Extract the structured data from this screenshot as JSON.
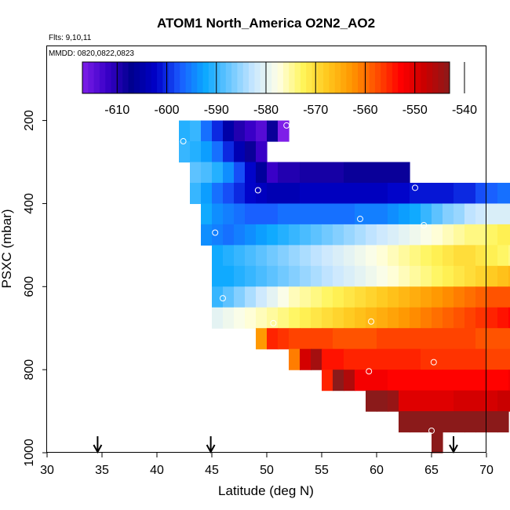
{
  "chart_data": {
    "type": "heatmap",
    "title": "ATOM1 North_America O2N2_AO2",
    "subtitle_flights": "Flts: 9,10,11",
    "subtitle_dates": "MMDD: 0820,0822,0823",
    "xlabel": "Latitude (deg N)",
    "ylabel": "PSXC (mbar)",
    "xlim": [
      30,
      70
    ],
    "ylim": [
      1000,
      0
    ],
    "x_ticks": [
      30,
      35,
      40,
      45,
      50,
      55,
      60,
      65,
      70
    ],
    "y_ticks": [
      200,
      400,
      600,
      800,
      1000
    ],
    "colorbar": {
      "range": [
        -617,
        -543
      ],
      "tick_values": [
        -610,
        -600,
        -590,
        -580,
        -570,
        -560,
        -550,
        -540
      ],
      "tick_labels": [
        "-610",
        "-600",
        "-590",
        "-580",
        "-570",
        "-560",
        "-550",
        "-540"
      ]
    },
    "flight_arrows_lat": [
      34.6,
      44.9,
      67.0
    ],
    "cell_width_deg": 1,
    "cell_height_mbar": 50,
    "rows": [
      {
        "p": 200,
        "x0": 42,
        "values": [
          -591,
          -590,
          -596,
          -600,
          -605,
          -610,
          -612,
          -614,
          -608,
          -620
        ]
      },
      {
        "p": 250,
        "x0": 42,
        "values": [
          -590,
          -591,
          -593,
          -596,
          -600,
          -604,
          -608,
          -612
        ]
      },
      {
        "p": 300,
        "x0": 43,
        "values": [
          -588,
          -589,
          -591,
          -594,
          -598,
          -602,
          -606,
          -612,
          -610,
          -610,
          -609,
          -609,
          -609,
          -609,
          -608,
          -608,
          -608,
          -608,
          -608,
          -608
        ]
      },
      {
        "p": 350,
        "x0": 43,
        "values": [
          -590,
          -593,
          -596,
          -598,
          -600,
          -602,
          -603,
          -604,
          -604,
          -604,
          -603,
          -603,
          -603,
          -603,
          -603,
          -603,
          -603,
          -603,
          -602,
          -602,
          -601,
          -601,
          -601,
          -601,
          -600,
          -600,
          -598,
          -597,
          -596,
          -596
        ]
      },
      {
        "p": 400,
        "x0": 44,
        "values": [
          -592,
          -594,
          -595,
          -596,
          -597,
          -597,
          -597,
          -596,
          -596,
          -596,
          -596,
          -596,
          -596,
          -596,
          -595,
          -595,
          -595,
          -594,
          -593,
          -592,
          -590,
          -588,
          -586,
          -585,
          -583,
          -582,
          -581,
          -581,
          -581,
          -580,
          -580,
          -580,
          -581,
          -581,
          -582,
          -583,
          -585,
          -587,
          -589,
          -589,
          -587,
          -586,
          -585,
          -585,
          -585,
          -585
        ]
      },
      {
        "p": 450,
        "x0": 44,
        "values": [
          -594,
          -595,
          -596,
          -595,
          -594,
          -593,
          -592,
          -591,
          -590,
          -589,
          -588,
          -587,
          -586,
          -585,
          -584,
          -583,
          -582,
          -581,
          -580,
          -579,
          -578,
          -577,
          -576,
          -575,
          -574,
          -574,
          -573,
          -572,
          -572,
          -572,
          -573,
          -574,
          -575,
          -576,
          -578,
          -580,
          -582,
          -584,
          -585,
          -585,
          -584,
          -583,
          -582,
          -581,
          -580,
          -579
        ]
      },
      {
        "p": 500,
        "x0": 45,
        "values": [
          -592,
          -591,
          -590,
          -589,
          -588,
          -587,
          -586,
          -585,
          -584,
          -583,
          -582,
          -581,
          -580,
          -579,
          -578,
          -577,
          -576,
          -575,
          -574,
          -573,
          -572,
          -571,
          -570,
          -570,
          -571,
          -572,
          -573,
          -574,
          -575,
          -576,
          -577,
          -578,
          -579,
          -580,
          -581,
          -582,
          -583,
          -584,
          -585,
          -586
        ]
      },
      {
        "p": 550,
        "x0": 45,
        "values": [
          -592,
          -592,
          -591,
          -590,
          -589,
          -588,
          -587,
          -586,
          -585,
          -584,
          -583,
          -582,
          -581,
          -580,
          -579,
          -578,
          -577,
          -576,
          -575,
          -574,
          -573,
          -572,
          -571,
          -570,
          -569,
          -568,
          -567,
          -566,
          -566,
          -566,
          -567,
          -568,
          -569,
          -570,
          -571,
          -572,
          -573,
          -574,
          -575,
          -576
        ]
      },
      {
        "p": 600,
        "x0": 45,
        "values": [
          -590,
          -588,
          -586,
          -584,
          -582,
          -580,
          -578,
          -576,
          -575,
          -574,
          -573,
          -572,
          -571,
          -570,
          -569,
          -568,
          -567,
          -566,
          -565,
          -564,
          -563,
          -562,
          -561,
          -560,
          -559,
          -558,
          -558,
          -558,
          -559,
          -560,
          -561,
          -562,
          -563,
          -564,
          -565,
          -566,
          -567,
          -568,
          -569,
          -570
        ]
      },
      {
        "p": 650,
        "x0": 45,
        "values": [
          -580,
          -579,
          -578,
          -577,
          -576,
          -575,
          -574,
          -573,
          -572,
          -571,
          -570,
          -569,
          -568,
          -567,
          -566,
          -565,
          -564,
          -563,
          -562,
          -561,
          -560,
          -559,
          -558,
          -557,
          -556,
          -555,
          -554,
          -553,
          -552,
          -551,
          -550,
          -549,
          -548,
          -547,
          -546,
          -545,
          -544,
          -543,
          -542,
          -541
        ]
      },
      {
        "p": 700,
        "x0": 49,
        "values": [
          -563,
          -555,
          -556,
          -557,
          -557,
          -557,
          -557,
          -558,
          -558,
          -558,
          -558,
          -557,
          -557,
          -557,
          -557,
          -557,
          -557,
          -557,
          -557,
          -557,
          -558,
          -558,
          -558,
          -558,
          -558,
          -558,
          -558,
          -558,
          -558,
          -558,
          -558,
          -558,
          -558,
          -558,
          -560,
          -560
        ]
      },
      {
        "p": 750,
        "x0": 52,
        "values": [
          -561,
          -549,
          -545,
          -554,
          -554,
          -555,
          -555,
          -555,
          -555,
          -555,
          -555,
          -555,
          -556,
          -556,
          -556,
          -556,
          -556,
          -556,
          -557,
          -557,
          -557,
          -557,
          -557,
          -557,
          -557,
          -557
        ]
      },
      {
        "p": 800,
        "x0": 55,
        "values": [
          -555,
          -541,
          -546,
          -552,
          -552,
          -552,
          -553,
          -553,
          -553,
          -553,
          -553,
          -553,
          -553,
          -553,
          -553,
          -553,
          -553,
          -552,
          -552,
          -552,
          -552,
          -553,
          -553,
          -553,
          -553,
          -553,
          -553,
          -553,
          -555
        ]
      },
      {
        "p": 850,
        "x0": 59,
        "values": [
          -541,
          -542,
          -544,
          -550,
          -550,
          -550,
          -550,
          -550,
          -549,
          -549,
          -549,
          -549,
          -548,
          -548,
          -548,
          -548,
          -547,
          -546,
          -546,
          -545,
          -545,
          -545,
          -545,
          -545,
          -545
        ]
      },
      {
        "p": 900,
        "x0": 62,
        "values": [
          -540,
          -539,
          -539,
          -539,
          -539,
          -538,
          -538,
          -538,
          -538,
          -538
        ]
      },
      {
        "p": 950,
        "x0": 65,
        "values": [
          -540
        ]
      }
    ],
    "sample_points": [
      {
        "lat": 51.8,
        "p": 212
      },
      {
        "lat": 42.4,
        "p": 250
      },
      {
        "lat": 49.2,
        "p": 368
      },
      {
        "lat": 63.5,
        "p": 362
      },
      {
        "lat": 58.5,
        "p": 437
      },
      {
        "lat": 64.3,
        "p": 452
      },
      {
        "lat": 45.3,
        "p": 470
      },
      {
        "lat": 46.0,
        "p": 628
      },
      {
        "lat": 50.6,
        "p": 688
      },
      {
        "lat": 59.5,
        "p": 684
      },
      {
        "lat": 65.2,
        "p": 782
      },
      {
        "lat": 59.3,
        "p": 804
      },
      {
        "lat": 65.0,
        "p": 947
      }
    ]
  },
  "colors": {
    "palette": [
      "#7e1fe8",
      "#3a00c8",
      "#00008f",
      "#0000c8",
      "#1a5cff",
      "#0aa8ff",
      "#69c6ff",
      "#c9e7ff",
      "#ffffe6",
      "#fff55a",
      "#ffc81e",
      "#ff9600",
      "#ff5000",
      "#ff0000",
      "#c80000",
      "#8b1a1a"
    ],
    "axis": "#000000",
    "marker": "#ffffff"
  }
}
